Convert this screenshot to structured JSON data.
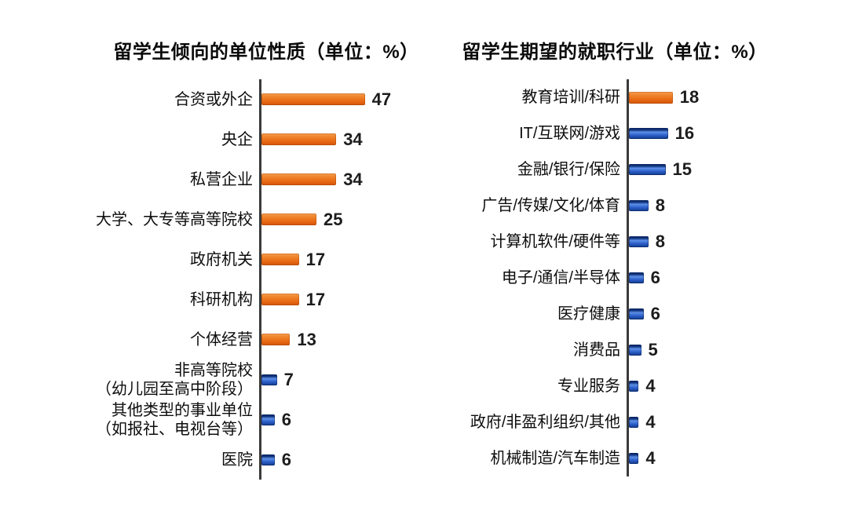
{
  "page": {
    "background": "#ffffff",
    "text_color": "#111111",
    "axis_color": "#3a3a3a",
    "value_color": "#1c1c1c"
  },
  "colors": {
    "orange_bar": "#ec7119",
    "orange_bar_light": "#f8a055",
    "orange_bar_dark": "#cf5408",
    "blue_bar": "#2a5cc8",
    "blue_bar_highlight": "#5c8fe6",
    "blue_bar_dark": "#0d2c6b"
  },
  "chart_data": [
    {
      "type": "bar",
      "orientation": "horizontal",
      "title": "留学生倾向的单位性质（单位：%）",
      "unit": "%",
      "xlim": [
        0,
        50
      ],
      "grid": false,
      "legend": "none",
      "value_labels": "end-of-bar",
      "categories": [
        "合资或外企",
        "央企",
        "私营企业",
        "大学、大专等高等院校",
        "政府机关",
        "科研机构",
        "个体经营",
        "非高等院校（幼儿园至高中阶段）",
        "其他类型的事业单位（如报社、电视台等）",
        "医院"
      ],
      "values": [
        47,
        34,
        34,
        25,
        17,
        17,
        13,
        7,
        6,
        6
      ],
      "rows": [
        {
          "label": "合资或外企",
          "sublabel": "",
          "value": 47,
          "color": "orange"
        },
        {
          "label": "央企",
          "sublabel": "",
          "value": 34,
          "color": "orange"
        },
        {
          "label": "私营企业",
          "sublabel": "",
          "value": 34,
          "color": "orange"
        },
        {
          "label": "大学、大专等高等院校",
          "sublabel": "",
          "value": 25,
          "color": "orange"
        },
        {
          "label": "政府机关",
          "sublabel": "",
          "value": 17,
          "color": "orange"
        },
        {
          "label": "科研机构",
          "sublabel": "",
          "value": 17,
          "color": "orange"
        },
        {
          "label": "个体经营",
          "sublabel": "",
          "value": 13,
          "color": "orange"
        },
        {
          "label": "非高等院校",
          "sublabel": "（幼儿园至高中阶段）",
          "value": 7,
          "color": "blue"
        },
        {
          "label": "其他类型的事业单位",
          "sublabel": "（如报社、电视台等）",
          "value": 6,
          "color": "blue"
        },
        {
          "label": "医院",
          "sublabel": "",
          "value": 6,
          "color": "blue"
        }
      ]
    },
    {
      "type": "bar",
      "orientation": "horizontal",
      "title": "留学生期望的就职行业（单位：%）",
      "unit": "%",
      "xlim": [
        0,
        20
      ],
      "grid": false,
      "legend": "none",
      "value_labels": "end-of-bar",
      "categories": [
        "教育培训/科研",
        "IT/互联网/游戏",
        "金融/银行/保险",
        "广告/传媒/文化/体育",
        "计算机软件/硬件等",
        "电子/通信/半导体",
        "医疗健康",
        "消费品",
        "专业服务",
        "政府/非盈利组织/其他",
        "机械制造/汽车制造"
      ],
      "values": [
        18,
        16,
        15,
        8,
        8,
        6,
        6,
        5,
        4,
        4,
        4
      ],
      "rows": [
        {
          "label": "教育培训/科研",
          "sublabel": "",
          "value": 18,
          "color": "orange"
        },
        {
          "label": "IT/互联网/游戏",
          "sublabel": "",
          "value": 16,
          "color": "blue"
        },
        {
          "label": "金融/银行/保险",
          "sublabel": "",
          "value": 15,
          "color": "blue"
        },
        {
          "label": "广告/传媒/文化/体育",
          "sublabel": "",
          "value": 8,
          "color": "blue"
        },
        {
          "label": "计算机软件/硬件等",
          "sublabel": "",
          "value": 8,
          "color": "blue"
        },
        {
          "label": "电子/通信/半导体",
          "sublabel": "",
          "value": 6,
          "color": "blue"
        },
        {
          "label": "医疗健康",
          "sublabel": "",
          "value": 6,
          "color": "blue"
        },
        {
          "label": "消费品",
          "sublabel": "",
          "value": 5,
          "color": "blue"
        },
        {
          "label": "专业服务",
          "sublabel": "",
          "value": 4,
          "color": "blue"
        },
        {
          "label": "政府/非盈利组织/其他",
          "sublabel": "",
          "value": 4,
          "color": "blue"
        },
        {
          "label": "机械制造/汽车制造",
          "sublabel": "",
          "value": 4,
          "color": "blue"
        }
      ]
    }
  ]
}
